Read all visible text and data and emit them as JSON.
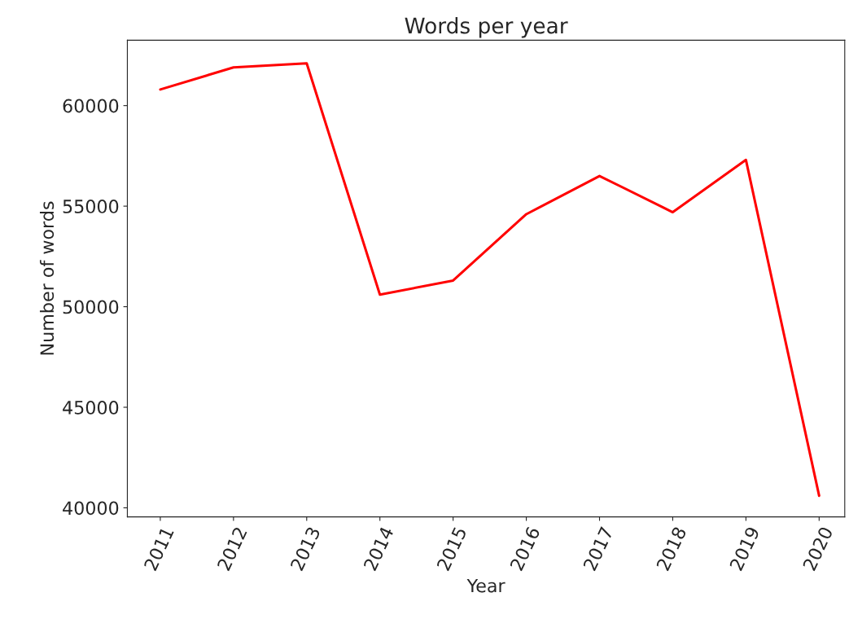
{
  "chart_data": {
    "type": "line",
    "title": "Words per year",
    "xlabel": "Year",
    "ylabel": "Number of words",
    "x": [
      2011,
      2012,
      2013,
      2014,
      2015,
      2016,
      2017,
      2018,
      2019,
      2020
    ],
    "series": [
      {
        "color": "#ff0000",
        "values": [
          60800,
          61900,
          62100,
          50600,
          51300,
          54600,
          56500,
          54700,
          57300,
          40600
        ]
      }
    ],
    "xlim": [
      2010.55,
      2020.35
    ],
    "xticks": [
      2011,
      2012,
      2013,
      2014,
      2015,
      2016,
      2017,
      2018,
      2019,
      2020
    ],
    "ylim": [
      39550,
      63250
    ],
    "yticks": [
      40000,
      45000,
      50000,
      55000,
      60000
    ],
    "grid": false,
    "legend": false
  }
}
